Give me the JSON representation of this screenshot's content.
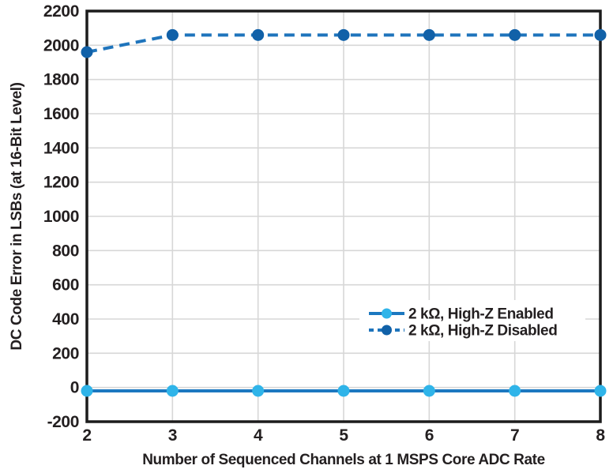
{
  "chart_data": {
    "type": "line",
    "x": [
      2,
      3,
      4,
      5,
      6,
      7,
      8
    ],
    "series": [
      {
        "name": "2 kΩ, High-Z Enabled",
        "values": [
          -20,
          -20,
          -20,
          -20,
          -20,
          -20,
          -20
        ],
        "line_color": "#1c78c0",
        "marker_color": "#2fb4e9",
        "dashed": false
      },
      {
        "name": "2 kΩ, High-Z Disabled",
        "values": [
          1960,
          2060,
          2060,
          2060,
          2060,
          2060,
          2060
        ],
        "line_color": "#1e74bc",
        "marker_color": "#1161a8",
        "dashed": true
      }
    ],
    "xlabel": "Number of Sequenced Channels at 1 MSPS Core ADC Rate",
    "ylabel": "DC Code Error in LSBs (at 16-Bit Level)",
    "xlim": [
      2,
      8
    ],
    "ylim": [
      -200,
      2200
    ],
    "xticks": [
      2,
      3,
      4,
      5,
      6,
      7,
      8
    ],
    "xtick_labels": [
      "2",
      "3",
      "4",
      "5",
      "6",
      "7",
      "8"
    ],
    "yticks": [
      -200,
      0,
      200,
      400,
      600,
      800,
      1000,
      1200,
      1400,
      1600,
      1800,
      2000,
      2200
    ],
    "ytick_labels": [
      "-200",
      "0",
      "200",
      "400",
      "600",
      "800",
      "1000",
      "1200",
      "1400",
      "1600",
      "1800",
      "2000",
      "2200"
    ],
    "grid": true,
    "legend_position": "inside-right-middle"
  },
  "colors": {
    "grid": "#d7d7d7",
    "border": "#1c1c1c",
    "text": "#231f20",
    "background": "#ffffff",
    "legend_background": "#ffffff"
  }
}
